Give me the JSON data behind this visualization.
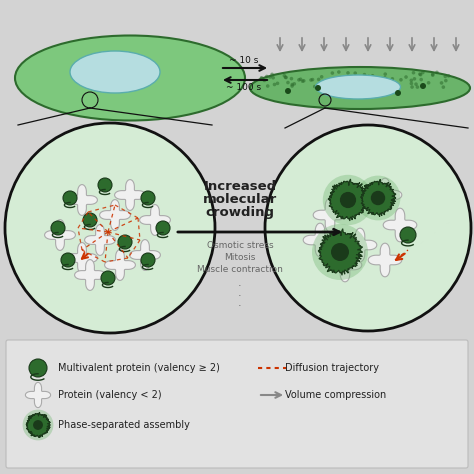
{
  "bg_color": "#d3d3d3",
  "cell_fill_left": "#7dc87d",
  "cell_fill_right": "#6ab46a",
  "cell_border": "#2d6b2d",
  "nucleus_fill": "#b5dde0",
  "nucleus_border": "#5aadad",
  "circle_fill": "#d5ecd5",
  "circle_border": "#111111",
  "protein_dark": "#2d6b2d",
  "protein_border": "#1a3a1a",
  "white_fill": "#f0f0f0",
  "white_border": "#aaaaaa",
  "red_color": "#cc3300",
  "gray_arrow": "#888888",
  "text_dark": "#222222",
  "text_gray": "#666666",
  "legend_bg": "#e0e0e0",
  "time1": "~ 10 s",
  "time2": "~ 100 s",
  "title1": "Increased",
  "title2": "molecular",
  "title3": "crowding",
  "sub1": "Osmotic stress",
  "sub2": "Mitosis",
  "sub3": "Muscle contraction",
  "leg1": "Multivalent protein (valency ≥ 2)",
  "leg2": "Protein (valency < 2)",
  "leg3": "Phase-separated assembly",
  "leg4": "Diffusion trajectory",
  "leg5": "Volume compression"
}
